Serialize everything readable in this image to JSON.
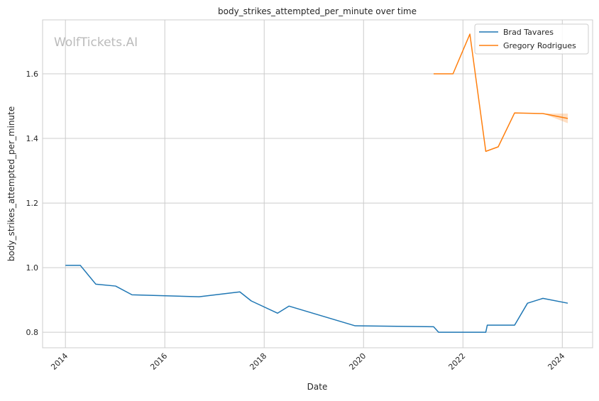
{
  "chart_data": {
    "type": "line",
    "title": "body_strikes_attempted_per_minute over time",
    "xlabel": "Date",
    "ylabel": "body_strikes_attempted_per_minute",
    "watermark": "WolfTickets.AI",
    "xlim": [
      2013.54,
      2024.61
    ],
    "ylim": [
      0.752,
      1.767
    ],
    "x_ticks": [
      2014,
      2016,
      2018,
      2020,
      2022,
      2024
    ],
    "x_tick_labels": [
      "2014",
      "2016",
      "2018",
      "2020",
      "2022",
      "2024"
    ],
    "y_ticks": [
      0.8,
      1.0,
      1.2,
      1.4,
      1.6
    ],
    "y_tick_labels": [
      "0.8",
      "1.0",
      "1.2",
      "1.4",
      "1.6"
    ],
    "grid": true,
    "legend_position": "top-right",
    "series": [
      {
        "name": "Brad Tavares",
        "color": "#1f77b4",
        "x": [
          2014.0,
          2014.3,
          2014.61,
          2015.01,
          2015.34,
          2016.69,
          2017.51,
          2017.74,
          2018.27,
          2018.5,
          2019.83,
          2021.41,
          2021.51,
          2022.46,
          2022.49,
          2023.04,
          2023.3,
          2023.61,
          2024.11
        ],
        "y": [
          1.007,
          1.007,
          0.949,
          0.943,
          0.916,
          0.91,
          0.925,
          0.897,
          0.859,
          0.881,
          0.82,
          0.817,
          0.8,
          0.8,
          0.822,
          0.822,
          0.89,
          0.905,
          0.89
        ]
      },
      {
        "name": "Gregory Rodrigues",
        "color": "#ff7f0e",
        "x": [
          2021.41,
          2021.8,
          2022.14,
          2022.46,
          2022.71,
          2023.04,
          2023.61,
          2024.11
        ],
        "y": [
          1.6,
          1.6,
          1.723,
          1.36,
          1.374,
          1.479,
          1.477,
          1.462
        ],
        "ci_lower": [
          1.6,
          1.6,
          1.723,
          1.36,
          1.374,
          1.479,
          1.477,
          1.447
        ],
        "ci_upper": [
          1.6,
          1.6,
          1.723,
          1.36,
          1.374,
          1.479,
          1.477,
          1.477
        ]
      }
    ]
  }
}
